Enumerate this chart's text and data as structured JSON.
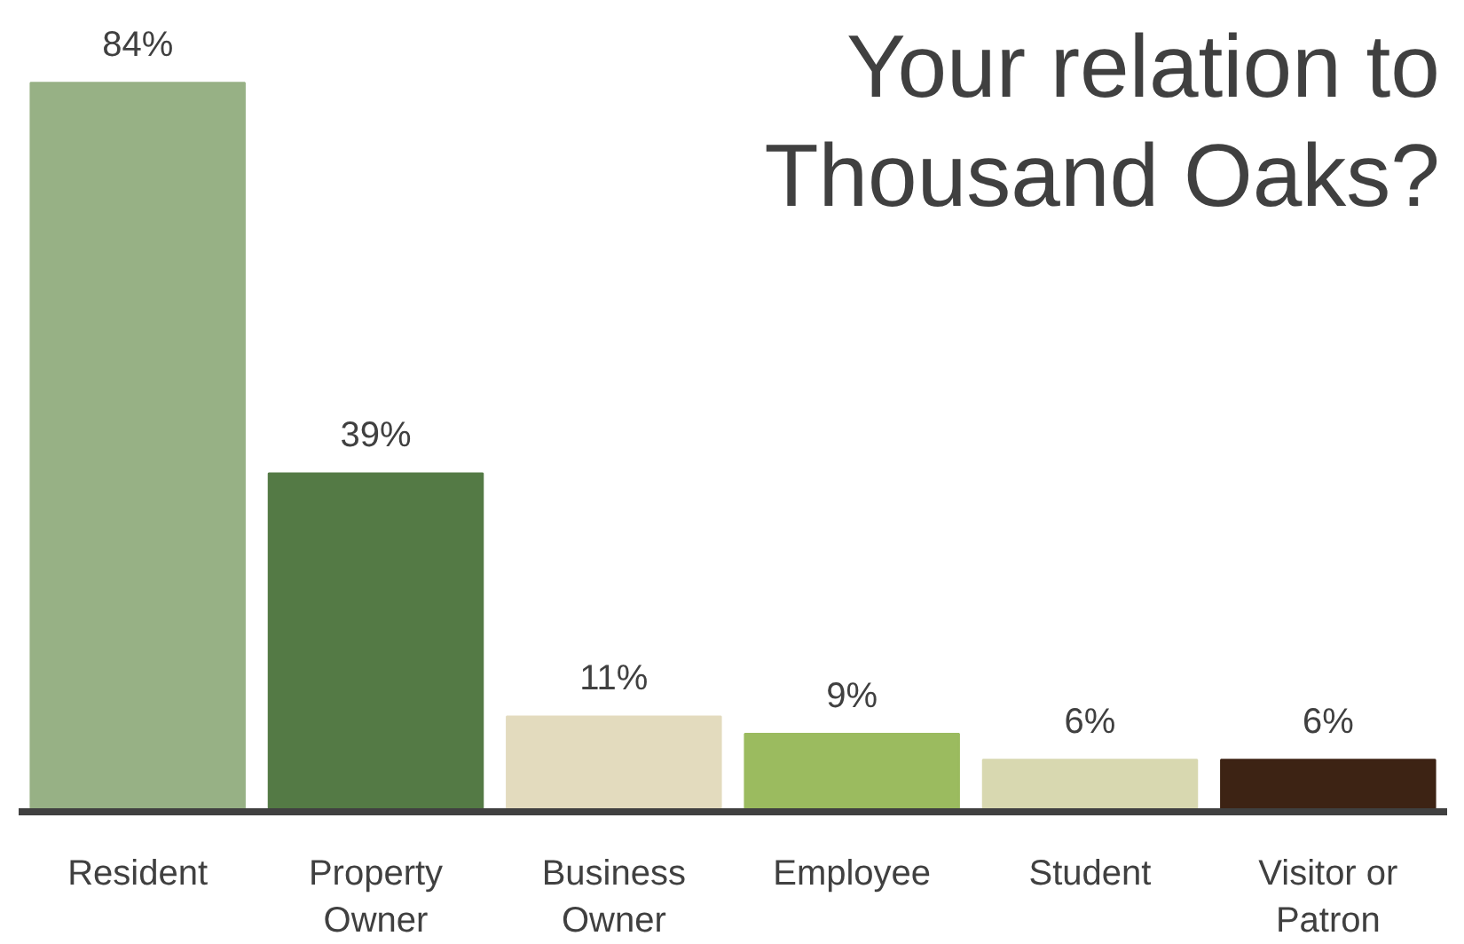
{
  "chart_data": {
    "type": "bar",
    "title": "Your relation to Thousand Oaks?",
    "categories": [
      "Resident",
      "Property Owner",
      "Business Owner",
      "Employee",
      "Student",
      "Visitor or Patron"
    ],
    "values": [
      84,
      39,
      11,
      9,
      6,
      6
    ],
    "colors": [
      "#97b185",
      "#547a45",
      "#e3dbbe",
      "#9bbb5f",
      "#d8d8b0",
      "#3d2314"
    ],
    "data_labels": true,
    "value_labels": [
      "84%",
      "39%",
      "11%",
      "9%",
      "6%",
      "6%"
    ],
    "grid": false
  }
}
